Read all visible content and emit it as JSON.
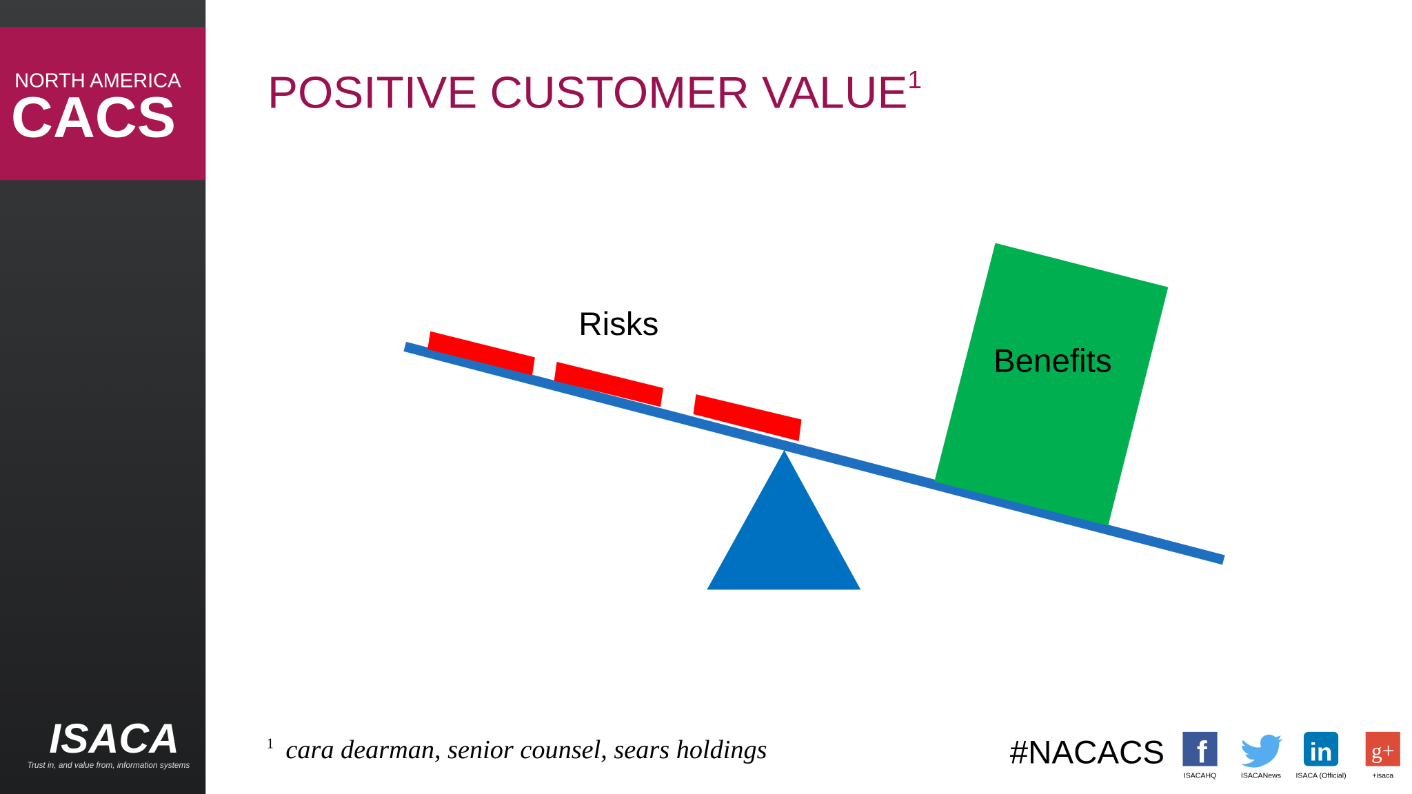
{
  "sidebar": {
    "brand_top": "NORTH AMERICA",
    "brand_main": "CACS",
    "logo": "ISACA",
    "tagline": "Trust in, and value from, information systems"
  },
  "title": {
    "text": "POSITIVE CUSTOMER VALUE",
    "superscript": "1"
  },
  "diagram": {
    "left_label": "Risks",
    "right_label": "Benefits"
  },
  "footnote": {
    "marker": "1",
    "text": "cara dearman, senior counsel, sears holdings"
  },
  "footer": {
    "hashtag": "#NACACS",
    "social": [
      {
        "icon": "f",
        "label": "ISACAHQ"
      },
      {
        "label": "ISACANews"
      },
      {
        "icon": "in",
        "label": "ISACA (Official)"
      },
      {
        "icon": "g+",
        "label": "+isaca"
      }
    ]
  }
}
